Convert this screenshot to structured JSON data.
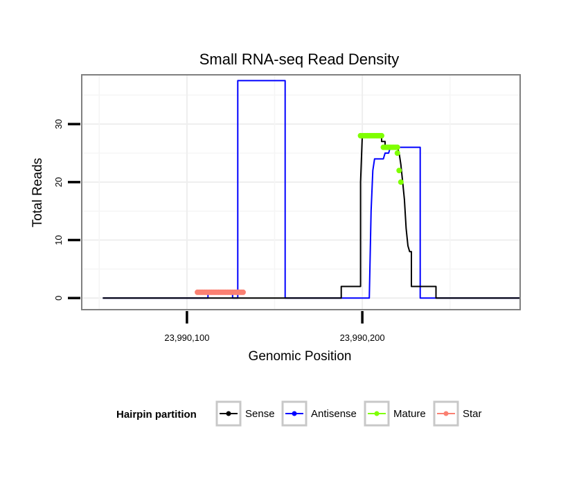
{
  "chart_data": {
    "type": "line",
    "title": "Small RNA-seq Read Density",
    "xlabel": "Genomic Position",
    "ylabel": "Total Reads",
    "xlim": [
      23990040,
      23990290
    ],
    "ylim": [
      -2,
      38.5
    ],
    "x_ticks": [
      {
        "value": 23990100,
        "label": "23,990,100"
      },
      {
        "value": 23990200,
        "label": "23,990,200"
      }
    ],
    "y_ticks": [
      {
        "value": 0,
        "label": "0"
      },
      {
        "value": 10,
        "label": "10"
      },
      {
        "value": 20,
        "label": "20"
      },
      {
        "value": 30,
        "label": "30"
      }
    ],
    "grid": true,
    "legend": {
      "title": "Hairpin partition",
      "position": "bottom",
      "entries": [
        {
          "label": "Sense",
          "color": "#000000"
        },
        {
          "label": "Antisense",
          "color": "#0000ff"
        },
        {
          "label": "Mature",
          "color": "#7fff00"
        },
        {
          "label": "Star",
          "color": "#fa8072"
        }
      ]
    },
    "series": [
      {
        "name": "Sense",
        "color": "#000000",
        "kind": "line",
        "x": [
          23990052,
          23990188,
          23990188,
          23990199,
          23990199,
          23990200,
          23990200,
          23990211,
          23990211,
          23990213,
          23990213,
          23990220,
          23990221,
          23990222,
          23990223,
          23990224,
          23990225,
          23990226,
          23990227,
          23990228,
          23990228,
          23990242,
          23990242,
          23990300
        ],
        "y": [
          0,
          0,
          2,
          2,
          20,
          28,
          28,
          28,
          27,
          27,
          26,
          26,
          25,
          23,
          20,
          17,
          12,
          9,
          8,
          8,
          2,
          2,
          0,
          0
        ]
      },
      {
        "name": "Antisense",
        "color": "#0000ff",
        "kind": "line",
        "x": [
          23990052,
          23990111,
          23990112,
          23990112,
          23990125,
          23990126,
          23990126,
          23990128,
          23990129,
          23990129,
          23990155,
          23990156,
          23990156,
          23990204,
          23990205,
          23990206,
          23990207,
          23990208,
          23990212,
          23990213,
          23990213,
          23990215,
          23990216,
          23990229,
          23990229,
          23990233,
          23990233,
          23990300
        ],
        "y": [
          0,
          0,
          0,
          1,
          1,
          1,
          0,
          0,
          0,
          37.5,
          37.5,
          37.5,
          0,
          0,
          15,
          22,
          24,
          24,
          24,
          25,
          25,
          25,
          26,
          26,
          26,
          26,
          0,
          0
        ]
      },
      {
        "name": "Mature",
        "color": "#7fff00",
        "kind": "points",
        "x": [
          23990199,
          23990200,
          23990201,
          23990202,
          23990203,
          23990204,
          23990205,
          23990206,
          23990207,
          23990208,
          23990209,
          23990210,
          23990211,
          23990212,
          23990213,
          23990214,
          23990215,
          23990216,
          23990217,
          23990218,
          23990219,
          23990220,
          23990220,
          23990221,
          23990222
        ],
        "y": [
          28,
          28,
          28,
          28,
          28,
          28,
          28,
          28,
          28,
          28,
          28,
          28,
          28,
          26,
          26,
          26,
          26,
          26,
          26,
          26,
          26,
          26,
          25,
          22,
          20
        ]
      },
      {
        "name": "Star",
        "color": "#fa8072",
        "kind": "points",
        "x": [
          23990106,
          23990107,
          23990108,
          23990109,
          23990110,
          23990111,
          23990112,
          23990113,
          23990114,
          23990115,
          23990116,
          23990117,
          23990118,
          23990119,
          23990120,
          23990121,
          23990122,
          23990123,
          23990124,
          23990125,
          23990126,
          23990127,
          23990128,
          23990129,
          23990130,
          23990131,
          23990132
        ],
        "y": [
          1,
          1,
          1,
          1,
          1,
          1,
          1,
          1,
          1,
          1,
          1,
          1,
          1,
          1,
          1,
          1,
          1,
          1,
          1,
          1,
          1,
          1,
          1,
          1,
          1,
          1,
          1
        ]
      }
    ]
  }
}
